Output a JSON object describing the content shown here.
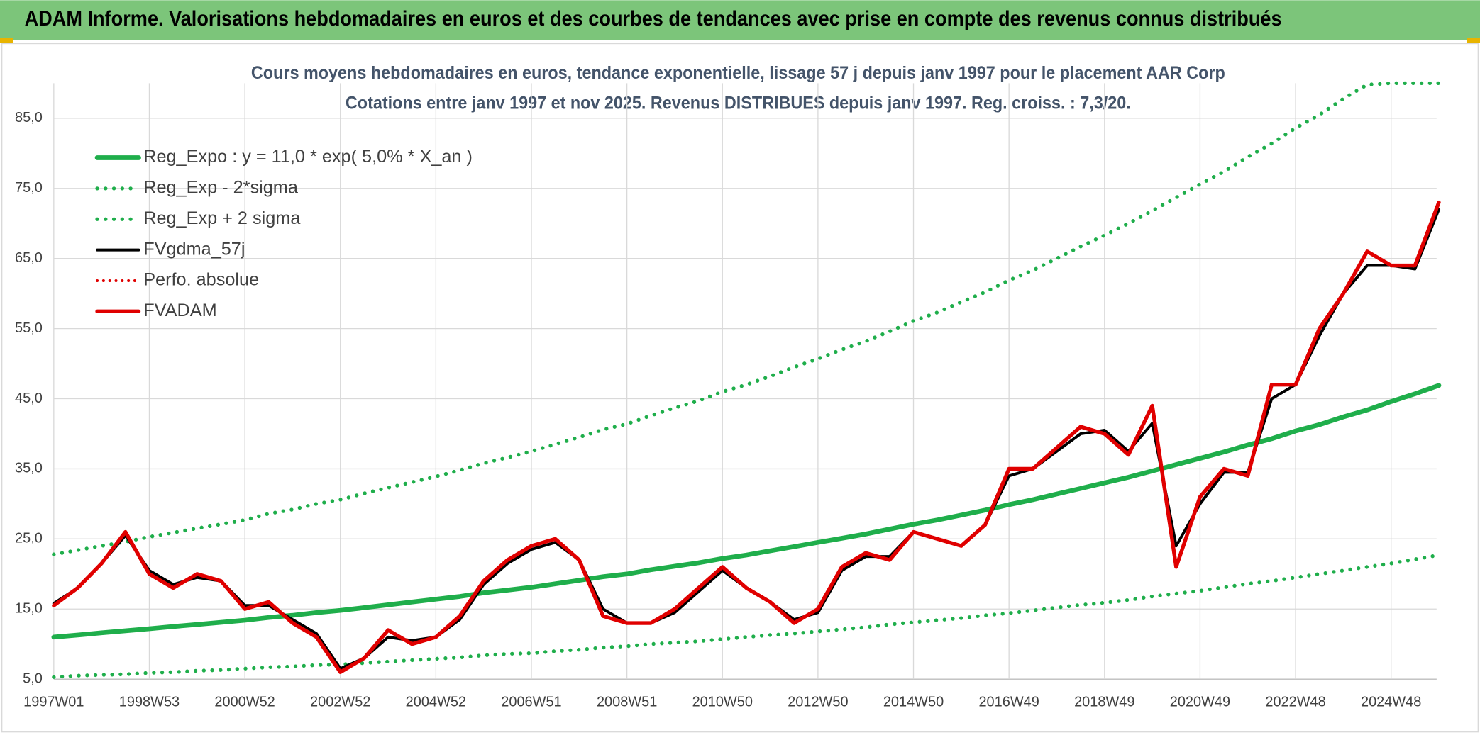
{
  "header": {
    "title": "ADAM Informe. Valorisations hebdomadaires en euros et des courbes de tendances avec prise en compte des revenus connus distribués"
  },
  "chart_data": {
    "type": "line",
    "title": "Cours moyens hebdomadaires en euros, tendance exponentielle, lissage 57 j depuis janv 1997 pour le placement AAR Corp",
    "subtitle": "Cotations entre janv 1997 et nov 2025. Revenus DISTRIBUES depuis janv 1997. Reg. croiss. : 7,3/20.",
    "categories": [
      "1997W01",
      null,
      null,
      null,
      "1998W53",
      null,
      null,
      null,
      "2000W52",
      null,
      null,
      null,
      "2002W52",
      null,
      null,
      null,
      "2004W52",
      null,
      null,
      null,
      "2006W51",
      null,
      null,
      null,
      "2008W51",
      null,
      null,
      null,
      "2010W50",
      null,
      null,
      null,
      "2012W50",
      null,
      null,
      null,
      "2014W50",
      null,
      null,
      null,
      "2016W49",
      null,
      null,
      null,
      "2018W49",
      null,
      null,
      null,
      "2020W49",
      null,
      null,
      null,
      "2022W48",
      null,
      null,
      null,
      "2024W48",
      null,
      null
    ],
    "ylim": [
      5,
      90
    ],
    "yticks": [
      {
        "value": 5,
        "label": "5,0"
      },
      {
        "value": 15,
        "label": "15,0"
      },
      {
        "value": 25,
        "label": "25,0"
      },
      {
        "value": 35,
        "label": "35,0"
      },
      {
        "value": 45,
        "label": "45,0"
      },
      {
        "value": 55,
        "label": "55,0"
      },
      {
        "value": 65,
        "label": "65,0"
      },
      {
        "value": 75,
        "label": "75,0"
      },
      {
        "value": 85,
        "label": "85,0"
      }
    ],
    "grid": true,
    "legend": "top-left",
    "series": [
      {
        "name": "Reg_Expo : y = 11,0 * exp( 5,0% *  X_an )",
        "color": "#1fae4b",
        "style": "solid",
        "width": 5,
        "values": [
          11.0,
          11.3,
          11.6,
          11.9,
          12.2,
          12.5,
          12.8,
          13.1,
          13.4,
          13.8,
          14.1,
          14.5,
          14.8,
          15.2,
          15.6,
          16.0,
          16.4,
          16.8,
          17.3,
          17.7,
          18.1,
          18.6,
          19.1,
          19.6,
          20.0,
          20.6,
          21.1,
          21.6,
          22.2,
          22.7,
          23.3,
          23.9,
          24.5,
          25.1,
          25.7,
          26.4,
          27.1,
          27.7,
          28.4,
          29.1,
          29.9,
          30.6,
          31.4,
          32.2,
          33.0,
          33.8,
          34.7,
          35.6,
          36.5,
          37.4,
          38.4,
          39.3,
          40.4,
          41.3,
          42.4,
          43.4,
          44.6,
          45.7,
          46.9
        ]
      },
      {
        "name": "Reg_Exp - 2*sigma",
        "color": "#1fae4b",
        "style": "dotted",
        "width": 4,
        "values": [
          5.3,
          5.5,
          5.6,
          5.7,
          5.9,
          6.0,
          6.2,
          6.3,
          6.5,
          6.7,
          6.8,
          7.0,
          7.1,
          7.3,
          7.5,
          7.7,
          7.9,
          8.1,
          8.4,
          8.6,
          8.7,
          9.0,
          9.2,
          9.5,
          9.7,
          10.0,
          10.2,
          10.4,
          10.7,
          11.0,
          11.3,
          11.5,
          11.8,
          12.1,
          12.4,
          12.8,
          13.1,
          13.4,
          13.7,
          14.1,
          14.4,
          14.8,
          15.2,
          15.6,
          15.9,
          16.3,
          16.8,
          17.2,
          17.6,
          18.1,
          18.6,
          19.0,
          19.5,
          20.0,
          20.5,
          21.0,
          21.5,
          22.1,
          22.7
        ]
      },
      {
        "name": "Reg_Exp + 2 sigma",
        "color": "#1fae4b",
        "style": "dotted",
        "width": 4,
        "values": [
          22.8,
          23.4,
          24.0,
          24.6,
          25.3,
          25.9,
          26.5,
          27.1,
          27.7,
          28.6,
          29.2,
          30.0,
          30.6,
          31.5,
          32.3,
          33.1,
          33.9,
          34.8,
          35.8,
          36.6,
          37.5,
          38.5,
          39.5,
          40.6,
          41.4,
          42.6,
          43.7,
          44.7,
          46.0,
          47.0,
          48.2,
          49.5,
          50.7,
          52.0,
          53.2,
          54.6,
          56.1,
          57.3,
          58.8,
          60.2,
          61.9,
          63.3,
          65.0,
          66.7,
          68.3,
          70.0,
          71.8,
          73.7,
          75.6,
          77.4,
          79.5,
          81.4,
          83.6,
          85.5,
          87.8,
          89.8,
          90,
          90,
          90
        ]
      },
      {
        "name": "FVgdma_57j",
        "color": "#000000",
        "style": "solid",
        "width": 3,
        "values": [
          15.8,
          18.0,
          21.5,
          25.5,
          20.5,
          18.5,
          19.5,
          19.0,
          15.5,
          15.5,
          13.5,
          11.5,
          6.5,
          8.0,
          11.0,
          10.5,
          11.0,
          13.5,
          18.5,
          21.5,
          23.5,
          24.5,
          22.0,
          15.0,
          13.0,
          13.0,
          14.5,
          17.5,
          20.5,
          18.0,
          16.0,
          13.5,
          14.5,
          20.5,
          22.5,
          22.5,
          26.0,
          25.0,
          24.0,
          27.0,
          34.0,
          35.0,
          37.5,
          40.0,
          40.5,
          37.5,
          41.5,
          24.0,
          30.0,
          34.5,
          34.5,
          45.0,
          47.0,
          54.0,
          60.0,
          64.0,
          64.0,
          63.5,
          72.0
        ]
      },
      {
        "name": "Perfo. absolue",
        "color": "#e00000",
        "style": "dotted",
        "width": 3,
        "values": [
          15.5,
          18.0,
          21.5,
          26.0,
          20.0,
          18.0,
          20.0,
          19.0,
          15.0,
          16.0,
          13.0,
          11.0,
          6.0,
          8.0,
          12.0,
          10.0,
          11.0,
          14.0,
          19.0,
          22.0,
          24.0,
          25.0,
          22.0,
          14.0,
          13.0,
          13.0,
          15.0,
          18.0,
          21.0,
          18.0,
          16.0,
          13.0,
          15.0,
          21.0,
          23.0,
          22.0,
          26.0,
          25.0,
          24.0,
          27.0,
          35.0,
          35.0,
          38.0,
          41.0,
          40.0,
          37.0,
          44.0,
          21.0,
          31.0,
          35.0,
          34.0,
          47.0,
          47.0,
          55.0,
          60.0,
          66.0,
          64.0,
          64.0,
          73.0
        ]
      },
      {
        "name": "FVADAM",
        "color": "#e00000",
        "style": "solid",
        "width": 4,
        "values": [
          15.5,
          18.0,
          21.5,
          26.0,
          20.0,
          18.0,
          20.0,
          19.0,
          15.0,
          16.0,
          13.0,
          11.0,
          6.0,
          8.0,
          12.0,
          10.0,
          11.0,
          14.0,
          19.0,
          22.0,
          24.0,
          25.0,
          22.0,
          14.0,
          13.0,
          13.0,
          15.0,
          18.0,
          21.0,
          18.0,
          16.0,
          13.0,
          15.0,
          21.0,
          23.0,
          22.0,
          26.0,
          25.0,
          24.0,
          27.0,
          35.0,
          35.0,
          38.0,
          41.0,
          40.0,
          37.0,
          44.0,
          21.0,
          31.0,
          35.0,
          34.0,
          47.0,
          47.0,
          55.0,
          60.0,
          66.0,
          64.0,
          64.0,
          73.0
        ]
      }
    ]
  }
}
